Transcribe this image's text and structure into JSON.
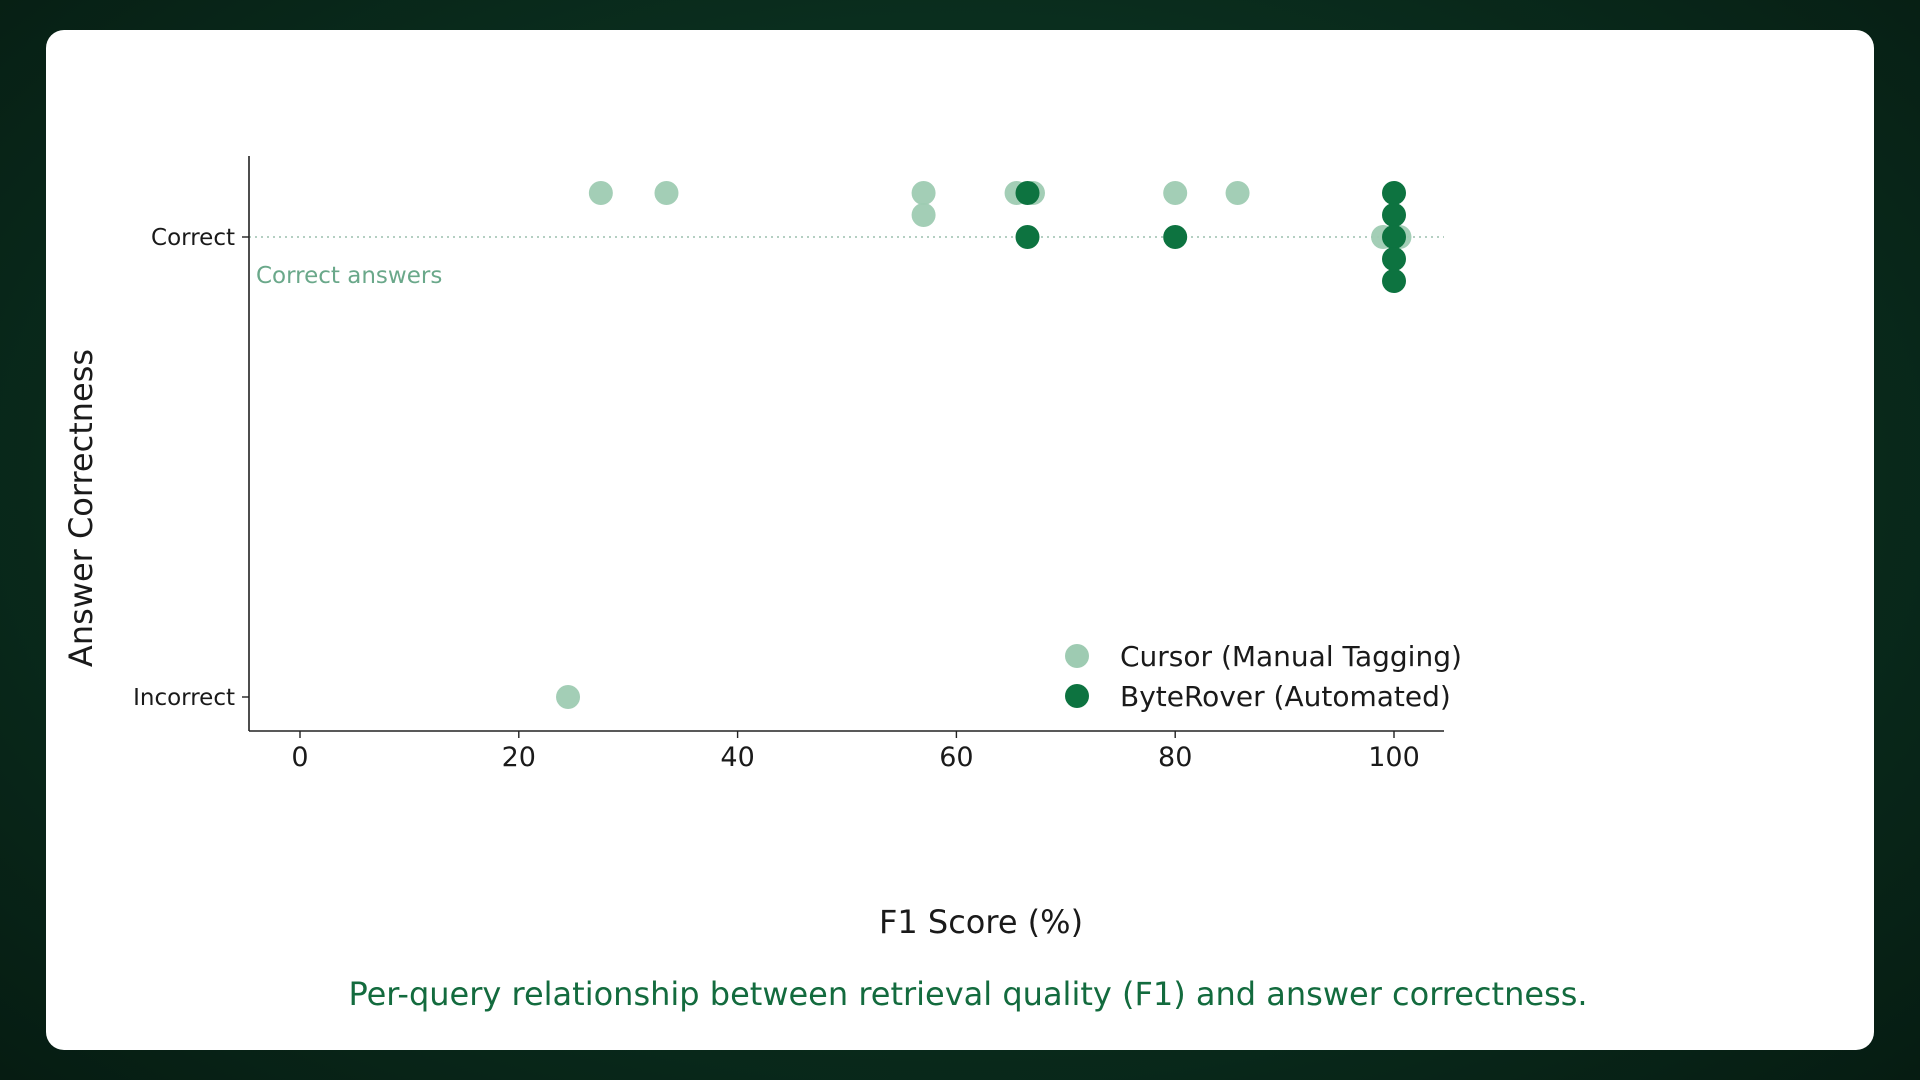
{
  "chart_data": {
    "type": "scatter",
    "title": "",
    "caption": "Per-query relationship between retrieval quality (F1) and answer correctness.",
    "xlabel": "F1 Score (%)",
    "ylabel": "Answer Correctness",
    "xlim": [
      -4.5,
      105
    ],
    "x_ticks": [
      0,
      20,
      40,
      60,
      80,
      100
    ],
    "y_categories": [
      "Incorrect",
      "Correct"
    ],
    "reference_line": {
      "y": "Correct",
      "style": "dotted",
      "label": "Correct answers"
    },
    "grid": false,
    "legend_position": "bottom-right",
    "note": "Points are vertically jittered (swarm style) around their category; offset is in points-spacing units.",
    "series": [
      {
        "name": "Cursor (Manual Tagging)",
        "color": "#9ecbb2",
        "points": [
          {
            "x": 27.5,
            "y": "Correct",
            "offset": 2
          },
          {
            "x": 33.5,
            "y": "Correct",
            "offset": 2
          },
          {
            "x": 57,
            "y": "Correct",
            "offset": 2
          },
          {
            "x": 57,
            "y": "Correct",
            "offset": 1
          },
          {
            "x": 65.5,
            "y": "Correct",
            "offset": 2
          },
          {
            "x": 67,
            "y": "Correct",
            "offset": 2
          },
          {
            "x": 80,
            "y": "Correct",
            "offset": 2
          },
          {
            "x": 85.7,
            "y": "Correct",
            "offset": 2
          },
          {
            "x": 99,
            "y": "Correct",
            "offset": 0
          },
          {
            "x": 100.5,
            "y": "Correct",
            "offset": 0
          },
          {
            "x": 24.5,
            "y": "Incorrect",
            "offset": 0
          }
        ]
      },
      {
        "name": "ByteRover (Automated)",
        "color": "#0d7340",
        "points": [
          {
            "x": 66.5,
            "y": "Correct",
            "offset": 2
          },
          {
            "x": 66.5,
            "y": "Correct",
            "offset": 0
          },
          {
            "x": 80,
            "y": "Correct",
            "offset": 0
          },
          {
            "x": 100,
            "y": "Correct",
            "offset": 2
          },
          {
            "x": 100,
            "y": "Correct",
            "offset": 1
          },
          {
            "x": 100,
            "y": "Correct",
            "offset": 0
          },
          {
            "x": 100,
            "y": "Correct",
            "offset": -1
          },
          {
            "x": 100,
            "y": "Correct",
            "offset": -2
          }
        ]
      }
    ]
  }
}
